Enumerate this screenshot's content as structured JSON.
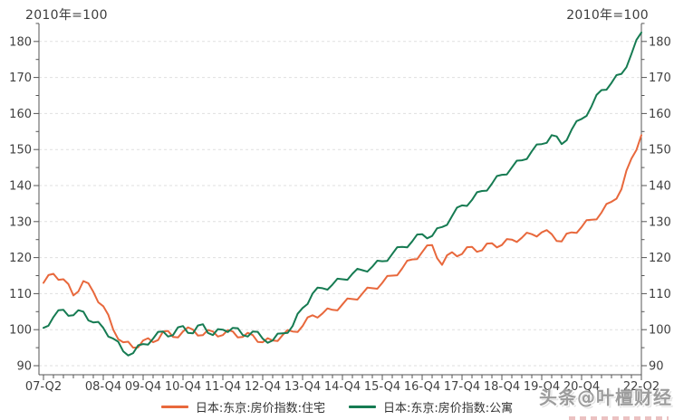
{
  "header": {
    "left_note": "2010年=100",
    "right_note": "2010年=100"
  },
  "watermark": {
    "text": "头条@叶檀财经"
  },
  "chart_data": {
    "type": "line",
    "title": "",
    "note": "2010年=100",
    "x_frequency": "quarterly",
    "x_start": "2007-Q2",
    "x_end": "2022-Q2",
    "x_tick_labels": [
      "07-Q2",
      "08-Q4",
      "09-Q4",
      "10-Q4",
      "11-Q4",
      "12-Q4",
      "13-Q4",
      "14-Q4",
      "15-Q4",
      "16-Q4",
      "17-Q4",
      "18-Q4",
      "19-Q4",
      "20-Q4",
      "22-Q2"
    ],
    "x_tick_positions": [
      0,
      6,
      10,
      14,
      18,
      22,
      26,
      30,
      34,
      38,
      42,
      46,
      50,
      54,
      60
    ],
    "ylim": [
      90,
      185
    ],
    "yticks": [
      90,
      100,
      110,
      120,
      130,
      140,
      150,
      160,
      170,
      180
    ],
    "grid": "horizontal dashed",
    "legend_position": "bottom-center",
    "axis_color": "#555555",
    "grid_color": "#dfdfdf",
    "series": [
      {
        "name": "日本:东京:房价指数:住宅",
        "color": "#E8683C",
        "values": [
          113,
          115.5,
          114,
          109.5,
          113.5,
          110.5,
          106.5,
          100,
          96.5,
          95,
          97,
          96.5,
          99.5,
          98,
          99.5,
          100,
          98.5,
          99.5,
          98.5,
          99.5,
          98,
          98.5,
          96.5,
          97,
          98.5,
          99.5,
          101,
          104,
          104.5,
          105.5,
          107,
          108.5,
          110,
          111.5,
          113,
          115,
          117,
          119.5,
          121.5,
          123.5,
          118,
          121.5,
          121,
          123,
          122,
          124,
          123.5,
          125,
          125.5,
          126.5,
          127,
          126.5,
          124.5,
          127,
          128.5,
          130.5,
          132.5,
          135.5,
          139,
          147.5,
          154
        ]
      },
      {
        "name": "日本:东京:房价指数:公寓",
        "color": "#167B52",
        "values": [
          100.5,
          103.5,
          105.5,
          104,
          105,
          102,
          100.5,
          97.5,
          94,
          93.5,
          96,
          97.5,
          99.5,
          98.5,
          101,
          99,
          101.5,
          98.5,
          100,
          100.5,
          98.5,
          99.5,
          97.5,
          97,
          99,
          101,
          106,
          110,
          111.5,
          112.5,
          114,
          115.5,
          116.5,
          117.5,
          119,
          121,
          123,
          124.5,
          126.5,
          126,
          128.5,
          131.5,
          134.5,
          136,
          138.5,
          140.5,
          143,
          145,
          147,
          149.5,
          151.5,
          154,
          151.5,
          155.5,
          158.5,
          162,
          166.5,
          168.5,
          171,
          176.5,
          182.5
        ]
      }
    ]
  }
}
